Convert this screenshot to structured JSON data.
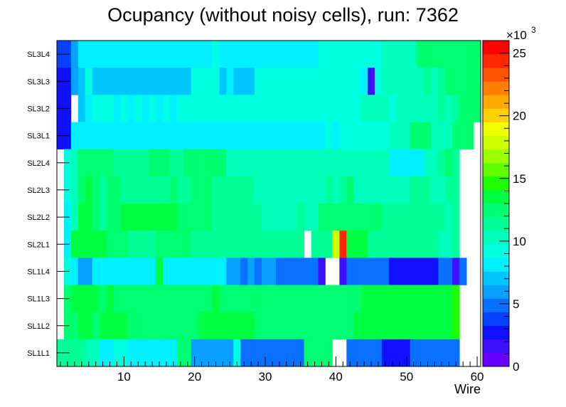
{
  "chart_data": {
    "type": "heatmap",
    "title": "Ocupancy (without noisy cells), run: 7362",
    "xlabel": "Wire",
    "x_ticks": [
      "10",
      "20",
      "30",
      "40",
      "50",
      "60"
    ],
    "xlim": [
      0.5,
      60.5
    ],
    "rows": [
      "SL3L4",
      "SL3L3",
      "SL3L2",
      "SL3L1",
      "SL2L4",
      "SL2L3",
      "SL2L2",
      "SL2L1",
      "SL1L4",
      "SL1L3",
      "SL1L2",
      "SL1L1"
    ],
    "zlim": [
      0,
      26000
    ],
    "z_multiplier_label": "×10",
    "z_exponent_label": "3",
    "z_ticks": [
      "0",
      "5",
      "10",
      "15",
      "20",
      "25"
    ],
    "z_tick_values": [
      0,
      5,
      10,
      15,
      20,
      25
    ],
    "palette": [
      "#6a00ff",
      "#3d10ff",
      "#1010ff",
      "#0840ff",
      "#0a70ff",
      "#0aa0ff",
      "#00c6ff",
      "#00f0ff",
      "#00ffe0",
      "#00ffbc",
      "#00ff99",
      "#00ff70",
      "#00ff40",
      "#20ff00",
      "#60ff00",
      "#9cff00",
      "#ccff00",
      "#f0ff00",
      "#ffd000",
      "#ffa800",
      "#ff8000",
      "#ff5500",
      "#ff2800",
      "#ff0000"
    ],
    "values_k": [
      [
        3.5,
        3.5,
        5.5,
        8,
        8,
        8,
        8,
        8,
        8,
        8,
        8,
        8,
        8,
        8,
        8,
        8,
        8,
        8,
        8,
        8,
        8,
        8,
        9,
        8,
        8,
        8,
        8,
        8,
        8,
        8,
        8,
        8,
        8,
        8,
        8,
        8,
        8,
        9,
        9,
        9,
        9,
        9,
        9,
        9,
        9,
        9,
        10,
        10,
        10,
        10,
        10,
        12,
        12,
        12,
        12,
        12,
        12,
        12,
        12,
        12
      ],
      [
        3,
        3,
        6,
        7.5,
        9,
        7.5,
        7.5,
        7.5,
        7.5,
        7.5,
        7.5,
        7.5,
        7.5,
        7.5,
        7.5,
        7.5,
        7.5,
        7.5,
        7.5,
        9,
        9,
        9,
        9,
        7.5,
        8.5,
        7.5,
        7.5,
        7.5,
        9,
        9,
        9,
        9,
        9,
        9,
        9,
        9,
        9,
        9,
        9,
        9,
        9,
        9,
        9,
        8.5,
        2,
        9,
        10,
        10,
        10,
        10,
        10,
        10,
        11,
        10,
        11,
        12,
        12,
        12,
        12,
        12
      ],
      [
        3,
        3,
        null,
        7.5,
        8.5,
        9,
        9,
        9,
        8.5,
        9,
        8.5,
        9,
        8.5,
        9,
        8.5,
        9,
        8.5,
        9,
        9,
        9,
        9,
        9,
        9,
        9,
        9,
        9,
        9,
        9,
        9,
        9,
        9,
        9,
        9,
        9,
        9,
        9,
        9,
        9,
        9,
        9,
        9,
        9,
        9,
        10,
        10,
        10,
        10,
        9.5,
        10,
        10,
        10,
        10,
        10,
        10,
        11,
        10,
        11,
        12,
        12,
        12
      ],
      [
        3,
        3,
        8,
        8.5,
        8.5,
        8.5,
        8.5,
        8.5,
        8.5,
        8.5,
        8.5,
        8.5,
        8.5,
        8.5,
        8.5,
        8.5,
        8.5,
        8.5,
        8.5,
        8.5,
        8.5,
        8.5,
        8.5,
        8.5,
        8.5,
        8.5,
        8.5,
        8.5,
        8.5,
        8.5,
        8.5,
        8.5,
        8.5,
        8.5,
        8.5,
        8.5,
        8.5,
        8.5,
        9.5,
        8.5,
        9.5,
        9.5,
        9.5,
        9.5,
        9.5,
        9.5,
        9.5,
        10,
        10,
        10,
        12,
        12,
        12,
        10,
        10,
        10,
        12,
        12,
        12,
        null
      ],
      [
        null,
        9,
        10,
        12,
        12,
        12,
        12,
        12,
        11,
        11,
        11,
        11,
        11,
        12,
        12,
        12,
        11,
        11,
        12,
        12,
        12,
        12,
        12,
        12,
        10,
        10,
        10,
        10,
        10,
        10,
        10,
        10,
        10,
        10,
        10,
        10,
        10,
        10,
        10,
        10,
        10,
        10,
        10,
        10,
        10,
        10,
        10,
        8.5,
        8.5,
        8.5,
        8.5,
        8.5,
        10,
        10,
        11,
        12,
        11,
        null,
        null,
        null
      ],
      [
        null,
        9,
        10,
        12,
        13,
        12,
        11,
        12,
        12,
        11,
        11,
        11,
        11,
        11,
        11,
        11,
        12,
        11,
        11,
        12,
        12,
        12,
        11,
        11,
        11,
        11,
        11,
        11,
        10,
        10,
        10,
        10,
        10,
        10,
        10,
        10,
        10,
        10,
        11,
        10,
        11,
        12,
        10,
        10,
        10,
        10,
        10,
        10,
        10,
        10,
        11,
        11,
        11,
        10,
        10,
        11,
        11,
        null,
        null,
        null
      ],
      [
        null,
        8,
        10,
        13,
        13,
        12,
        11,
        12,
        12,
        13,
        13,
        13,
        13,
        13,
        13,
        13,
        13,
        12,
        12,
        12,
        12,
        12,
        11,
        11,
        11,
        11,
        11,
        11,
        11,
        10,
        10,
        10,
        10,
        10,
        11,
        10,
        10,
        12,
        12,
        12,
        12,
        12,
        12,
        12,
        12,
        12,
        11,
        11,
        11,
        11,
        11,
        11,
        11,
        11,
        11,
        10,
        11,
        null,
        null,
        null
      ],
      [
        null,
        8.5,
        13,
        13,
        13,
        13,
        13,
        12,
        12,
        12,
        11,
        11,
        11,
        11,
        12,
        12,
        12,
        12,
        12,
        11,
        11,
        11,
        11,
        11,
        11,
        11,
        11,
        11,
        11,
        11,
        11,
        11,
        11,
        11,
        11,
        null,
        11,
        11,
        11,
        17.5,
        24,
        13,
        13,
        13,
        11,
        11,
        11,
        11,
        11,
        11,
        11,
        11,
        11,
        11,
        10,
        10,
        11,
        null,
        null,
        null
      ],
      [
        null,
        9,
        8.5,
        6,
        6,
        8.5,
        8.5,
        8.5,
        8.5,
        8.5,
        8.5,
        8.5,
        8.5,
        8.5,
        14,
        8.5,
        8.5,
        8.5,
        8.5,
        8.5,
        8.5,
        8.5,
        8.5,
        8.5,
        6,
        6,
        5,
        6,
        5,
        6,
        6,
        5,
        5,
        5,
        5,
        5,
        5,
        2,
        null,
        null,
        2,
        5,
        5,
        5,
        5,
        5,
        5,
        3,
        3,
        3,
        3,
        3,
        3,
        3,
        5,
        5,
        2,
        5,
        null,
        null
      ],
      [
        null,
        12,
        13,
        13,
        13,
        13,
        12,
        13,
        12,
        12,
        12,
        12,
        12,
        12,
        12,
        12,
        12,
        12,
        12,
        12,
        12,
        12,
        13,
        12,
        12,
        12,
        12,
        12,
        12,
        12,
        12,
        12,
        12,
        12,
        12,
        12,
        12,
        12,
        12,
        12,
        12,
        12,
        12,
        13,
        13,
        13,
        13,
        13,
        13,
        13,
        13,
        13,
        13,
        13,
        14,
        14,
        15,
        null,
        null,
        null
      ],
      [
        null,
        12,
        12,
        13,
        13,
        12,
        13,
        13,
        13,
        13,
        12,
        12,
        12,
        12,
        12,
        12,
        12,
        12,
        12,
        12,
        13,
        13,
        13,
        13,
        13,
        13,
        13,
        13,
        12,
        12,
        12,
        12,
        12,
        12,
        12,
        12,
        12,
        12,
        12,
        12,
        12,
        12,
        13,
        13,
        13,
        13,
        13,
        13,
        13,
        13,
        13,
        13,
        13,
        13,
        14,
        14,
        15,
        null,
        null,
        null
      ],
      [
        11,
        11,
        11,
        11,
        10,
        10,
        8.5,
        8.5,
        9,
        9,
        8.5,
        8.5,
        8.5,
        8.5,
        8.5,
        8.5,
        8.5,
        12,
        12,
        6,
        6,
        6,
        6,
        6,
        6,
        9,
        5,
        5,
        5,
        5,
        5,
        5,
        5,
        5,
        5,
        12,
        12,
        12,
        12,
        null,
        null,
        5,
        5,
        5,
        5,
        5,
        3,
        3,
        3,
        3,
        5,
        5,
        5,
        5,
        5,
        5,
        5,
        null,
        null,
        null
      ]
    ]
  }
}
